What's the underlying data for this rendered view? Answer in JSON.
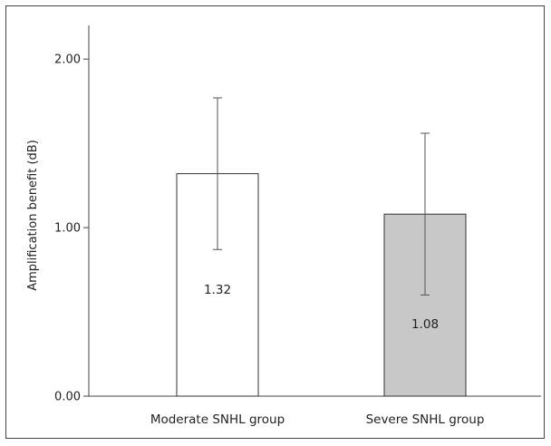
{
  "chart_data": {
    "type": "bar",
    "categories": [
      "Moderate SNHL group",
      "Severe SNHL group"
    ],
    "values": [
      1.32,
      1.08
    ],
    "data_labels": [
      "1.32",
      "1.08"
    ],
    "error_bars": [
      {
        "low": 0.87,
        "high": 1.77
      },
      {
        "low": 0.6,
        "high": 1.56
      }
    ],
    "bar_colors": [
      "#ffffff",
      "#c8c8c8"
    ],
    "ylabel": "Amplification benefit (dB)",
    "xlabel": "",
    "ylim": [
      0,
      2.2
    ],
    "yticks": [
      0,
      1,
      2
    ],
    "ytick_labels": [
      "0.00",
      "1.00",
      "2.00"
    ],
    "grid": false
  }
}
